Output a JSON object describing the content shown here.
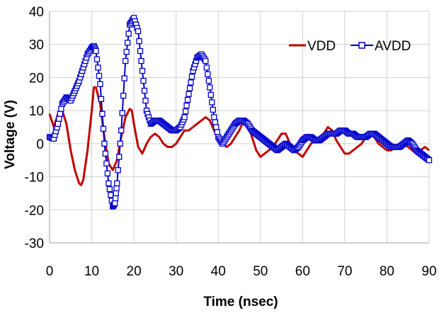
{
  "chart_data": {
    "type": "line",
    "title": "",
    "xlabel": "Time (nsec)",
    "ylabel": "Voltage (V)",
    "xlim": [
      0,
      90
    ],
    "ylim": [
      -30,
      40
    ],
    "x_ticks": [
      0,
      10,
      20,
      30,
      40,
      50,
      60,
      70,
      80,
      90
    ],
    "y_ticks": [
      -30,
      -20,
      -10,
      0,
      10,
      20,
      30,
      40
    ],
    "grid": true,
    "legend_position": "top-right",
    "series": [
      {
        "name": "VDD",
        "color": "#c00000",
        "marker": "none",
        "x": [
          0,
          1,
          2,
          3,
          4,
          5,
          6,
          7,
          7.5,
          8,
          9,
          10,
          10.5,
          11,
          12,
          13,
          14,
          15,
          16,
          17,
          18,
          19,
          19.5,
          20,
          21,
          22,
          23,
          24,
          25,
          26,
          27,
          28,
          29,
          30,
          31,
          32,
          33,
          34,
          35,
          36,
          37,
          38,
          39,
          40,
          41,
          42,
          43,
          44,
          45,
          46,
          47,
          48,
          49,
          50,
          51,
          52,
          53,
          54,
          55,
          56,
          57,
          58,
          59,
          60,
          61,
          62,
          63,
          64,
          65,
          66,
          67,
          68,
          69,
          70,
          71,
          72,
          73,
          74,
          75,
          76,
          77,
          78,
          79,
          80,
          81,
          82,
          83,
          84,
          85,
          86,
          87,
          88,
          89,
          90
        ],
        "y": [
          9,
          5,
          9,
          10,
          6,
          -2,
          -8,
          -12,
          -12.5,
          -11,
          -2,
          10,
          17,
          17,
          12,
          2,
          -6,
          -8,
          -5,
          2,
          8,
          10.5,
          10,
          6,
          -1,
          -3,
          0,
          2,
          3,
          2,
          0,
          -1,
          -1,
          0,
          2,
          4,
          4,
          5,
          6,
          7,
          8,
          7,
          4,
          2,
          0,
          -1,
          0,
          2,
          4,
          7,
          6,
          2,
          -2,
          -4,
          -3,
          -2,
          -1,
          1,
          3,
          3,
          0,
          -2,
          -3,
          -4,
          -2,
          0,
          1,
          2,
          3,
          5,
          4,
          1,
          -1,
          -3,
          -3,
          -2,
          -1,
          0,
          2,
          3,
          2,
          0,
          -1,
          -2,
          -2,
          -1,
          0,
          0,
          -1,
          -2,
          -3,
          -2,
          -1,
          -2
        ]
      },
      {
        "name": "AVDD",
        "color": "#0000cc",
        "marker": "square",
        "x": [
          0,
          1,
          2,
          3,
          4,
          5,
          6,
          7,
          8,
          9,
          10,
          10.5,
          11,
          12,
          13,
          14,
          15,
          15.5,
          16,
          17,
          18,
          19,
          20,
          21,
          22,
          23,
          24,
          25,
          26,
          27,
          28,
          29,
          30,
          31,
          32,
          33,
          34,
          35,
          36,
          37,
          38,
          39,
          40,
          41,
          42,
          43,
          44,
          45,
          46,
          47,
          48,
          49,
          50,
          51,
          52,
          53,
          54,
          55,
          56,
          57,
          58,
          59,
          60,
          61,
          62,
          63,
          64,
          65,
          66,
          67,
          68,
          69,
          70,
          71,
          72,
          73,
          74,
          75,
          76,
          77,
          78,
          79,
          80,
          81,
          82,
          83,
          84,
          85,
          86,
          87,
          88,
          89,
          90
        ],
        "y": [
          2,
          1.5,
          6,
          12,
          14,
          13,
          16,
          19,
          23,
          27,
          29,
          29.5,
          28,
          18,
          0,
          -12,
          -19,
          -18,
          -12,
          4,
          25,
          36,
          38,
          34,
          22,
          10,
          6,
          7,
          7,
          6,
          5,
          4,
          4,
          5,
          8,
          15,
          22,
          26,
          27,
          25,
          17,
          8,
          2,
          0,
          2,
          4,
          6,
          7,
          7,
          6,
          4,
          3,
          2,
          1,
          0,
          -1,
          -2,
          -1,
          0,
          -1,
          -2,
          -1,
          1,
          2,
          2,
          1,
          1,
          2,
          3,
          3,
          3,
          4,
          4,
          3,
          3,
          2,
          2,
          2,
          3,
          3,
          2,
          1,
          0,
          -1,
          -1,
          -1,
          0,
          1,
          0,
          -2,
          -3,
          -4,
          -5
        ]
      }
    ]
  }
}
